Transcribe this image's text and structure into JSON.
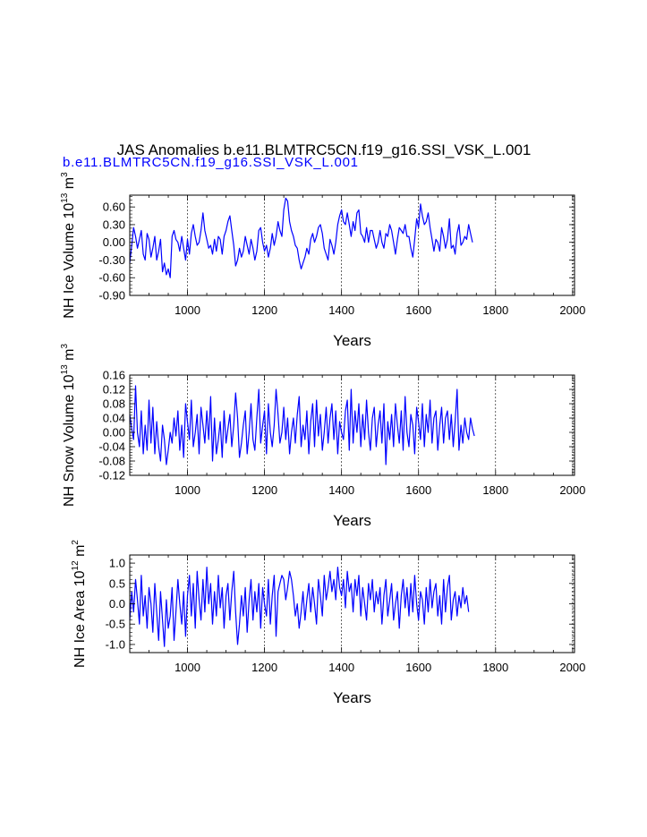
{
  "title": "JAS Anomalies b.e11.BLMTRC5CN.f19_g16.SSI_VSK_L.001",
  "subtitle": "b.e11.BLMTRC5CN.f19_g16.SSI_VSK_L.001",
  "colors": {
    "series": "#0000ff",
    "axis": "#000000",
    "subtitle": "#0000ff"
  },
  "chart_data": [
    {
      "type": "line",
      "title": "",
      "ylabel_parts": [
        "NH Ice Volume 10",
        "13",
        " m",
        "3"
      ],
      "xlabel": "Years",
      "xlim": [
        850,
        2005
      ],
      "ylim": [
        -0.9,
        0.8
      ],
      "xticks": [
        1000,
        1200,
        1400,
        1600,
        1800,
        2000
      ],
      "yticks": [
        -0.9,
        -0.6,
        -0.3,
        0.0,
        0.3,
        0.6
      ],
      "ytick_labels": [
        "-0.90",
        "-0.60",
        "-0.30",
        "0.00",
        "0.30",
        "0.60"
      ],
      "vgrid": [
        1000,
        1200,
        1400,
        1600,
        1800,
        2000
      ],
      "series": [
        {
          "name": "b.e11.BLMTRC5CN.f19_g16.SSI_VSK_L.001",
          "x_start": 850,
          "x_step": 5,
          "values": [
            -0.35,
            -0.05,
            0.25,
            0.1,
            -0.1,
            0.05,
            0.2,
            -0.2,
            -0.3,
            0.15,
            0.05,
            -0.25,
            -0.1,
            0.1,
            -0.3,
            -0.15,
            0.05,
            -0.5,
            -0.35,
            -0.55,
            -0.45,
            -0.6,
            0.1,
            0.2,
            0.05,
            0.0,
            -0.15,
            0.1,
            -0.1,
            -0.3,
            0.05,
            -0.2,
            0.15,
            0.3,
            0.1,
            -0.05,
            0.0,
            0.2,
            0.5,
            0.2,
            0.05,
            -0.1,
            -0.05,
            -0.2,
            0.05,
            -0.15,
            0.1,
            0.05,
            -0.2,
            0.1,
            0.2,
            0.35,
            0.45,
            0.2,
            -0.05,
            -0.4,
            -0.3,
            -0.1,
            -0.25,
            -0.15,
            0.1,
            -0.05,
            -0.2,
            0.05,
            -0.1,
            -0.3,
            -0.15,
            0.2,
            0.25,
            0.0,
            -0.15,
            -0.05,
            -0.25,
            -0.1,
            0.15,
            -0.05,
            0.1,
            0.35,
            0.2,
            0.1,
            0.55,
            0.75,
            0.7,
            0.35,
            0.2,
            0.1,
            -0.05,
            -0.1,
            -0.3,
            -0.45,
            -0.35,
            -0.25,
            -0.1,
            -0.2,
            0.05,
            0.15,
            0.0,
            0.1,
            0.25,
            0.3,
            0.15,
            -0.1,
            -0.2,
            -0.3,
            0.05,
            -0.05,
            -0.2,
            0.0,
            0.3,
            0.45,
            0.55,
            0.35,
            0.3,
            0.5,
            0.3,
            0.1,
            0.35,
            0.2,
            0.5,
            0.55,
            0.15,
            0.1,
            0.0,
            0.25,
            0.0,
            0.2,
            0.2,
            0.05,
            -0.1,
            0.0,
            0.2,
            0.0,
            -0.1,
            0.15,
            0.1,
            0.3,
            0.2,
            0.0,
            -0.2,
            0.05,
            0.25,
            0.2,
            0.15,
            0.3,
            0.1,
            0.1,
            -0.1,
            -0.25,
            0.05,
            0.4,
            0.25,
            0.65,
            0.45,
            0.3,
            0.35,
            0.5,
            0.25,
            0.05,
            -0.15,
            0.05,
            0.0,
            -0.15,
            0.25,
            0.1,
            -0.1,
            0.05,
            0.4,
            -0.1,
            -0.05,
            -0.2,
            0.15,
            0.3,
            -0.05,
            0.0,
            0.1,
            0.05,
            0.3,
            0.15,
            0.0
          ]
        }
      ]
    },
    {
      "type": "line",
      "title": "",
      "ylabel_parts": [
        "NH Snow Volume 10",
        "13",
        " m",
        "3"
      ],
      "xlabel": "Years",
      "xlim": [
        850,
        2005
      ],
      "ylim": [
        -0.12,
        0.16
      ],
      "xticks": [
        1000,
        1200,
        1400,
        1600,
        1800,
        2000
      ],
      "yticks": [
        -0.12,
        -0.08,
        -0.04,
        0.0,
        0.04,
        0.08,
        0.12,
        0.16
      ],
      "ytick_labels": [
        "-0.12",
        "-0.08",
        "-0.04",
        "0.00",
        "0.04",
        "0.08",
        "0.12",
        "0.16"
      ],
      "vgrid": [
        1000,
        1200,
        1400,
        1600,
        1800,
        2000
      ],
      "series": [
        {
          "name": "b.e11.BLMTRC5CN.f19_g16.SSI_VSK_L.001",
          "x_start": 850,
          "x_step": 5,
          "values": [
            0.05,
            0.01,
            -0.02,
            0.13,
            0.0,
            -0.04,
            0.06,
            -0.06,
            0.02,
            -0.05,
            0.09,
            -0.03,
            0.07,
            -0.06,
            0.03,
            -0.04,
            -0.08,
            0.02,
            -0.02,
            -0.09,
            -0.05,
            0.0,
            -0.03,
            0.04,
            -0.01,
            0.06,
            -0.05,
            0.02,
            -0.07,
            0.08,
            0.03,
            -0.02,
            0.09,
            -0.04,
            0.0,
            0.05,
            -0.06,
            0.07,
            0.02,
            -0.03,
            0.06,
            -0.02,
            0.1,
            -0.08,
            0.04,
            -0.06,
            -0.02,
            0.03,
            -0.07,
            0.06,
            -0.03,
            0.01,
            0.05,
            -0.04,
            0.02,
            0.11,
            0.04,
            -0.07,
            -0.03,
            0.02,
            0.06,
            -0.06,
            0.0,
            0.08,
            -0.02,
            -0.05,
            0.04,
            0.12,
            -0.03,
            0.02,
            0.06,
            -0.06,
            0.08,
            0.0,
            -0.04,
            0.02,
            0.12,
            0.05,
            -0.03,
            0.0,
            0.07,
            -0.02,
            0.04,
            -0.06,
            0.0,
            0.04,
            -0.03,
            0.05,
            0.1,
            -0.04,
            0.02,
            -0.02,
            0.06,
            -0.06,
            0.03,
            0.08,
            -0.04,
            0.09,
            -0.01,
            0.05,
            -0.05,
            0.0,
            0.07,
            -0.03,
            0.04,
            0.08,
            -0.02,
            0.06,
            -0.06,
            0.03,
            0.0,
            -0.02,
            0.06,
            0.09,
            -0.05,
            0.12,
            -0.03,
            0.06,
            0.0,
            0.08,
            -0.04,
            0.05,
            -0.02,
            0.09,
            0.0,
            -0.05,
            0.04,
            0.07,
            -0.04,
            0.02,
            0.06,
            -0.03,
            0.08,
            -0.09,
            0.03,
            -0.02,
            0.05,
            -0.04,
            0.08,
            0.02,
            -0.03,
            0.06,
            -0.05,
            0.1,
            0.0,
            -0.04,
            0.05,
            0.02,
            -0.06,
            0.07,
            0.03,
            -0.02,
            0.08,
            -0.04,
            0.05,
            0.0,
            0.09,
            -0.03,
            0.04,
            0.06,
            -0.05,
            0.02,
            0.07,
            -0.03,
            0.04,
            0.06,
            -0.02,
            0.05,
            -0.04,
            0.03,
            0.12,
            -0.05,
            0.02,
            -0.03,
            0.04,
            0.0,
            -0.02,
            0.04,
            0.01,
            -0.01
          ]
        }
      ]
    },
    {
      "type": "line",
      "title": "",
      "ylabel_parts": [
        "NH Ice Area 10",
        "12",
        " m",
        "2"
      ],
      "xlabel": "Years",
      "xlim": [
        850,
        2005
      ],
      "ylim": [
        -1.2,
        1.2
      ],
      "xticks": [
        1000,
        1200,
        1400,
        1600,
        1800,
        2000
      ],
      "yticks": [
        -1.0,
        -0.5,
        0.0,
        0.5,
        1.0
      ],
      "ytick_labels": [
        "-1.0",
        "-0.5",
        "0.0",
        "0.5",
        "1.0"
      ],
      "vgrid": [
        1000,
        1200,
        1400,
        1600,
        1800,
        2000
      ],
      "series": [
        {
          "name": "b.e11.BLMTRC5CN.f19_g16.SSI_VSK_L.001",
          "x_start": 850,
          "x_step": 5,
          "values": [
            -0.4,
            0.3,
            -0.2,
            0.6,
            0.1,
            -0.5,
            0.7,
            -0.3,
            0.2,
            -0.6,
            0.4,
            0.0,
            -0.7,
            0.5,
            -0.2,
            -0.9,
            0.3,
            -0.4,
            -1.05,
            0.1,
            -0.6,
            -0.3,
            0.4,
            -0.9,
            -0.2,
            0.6,
            0.0,
            -0.5,
            0.3,
            -0.8,
            0.2,
            0.7,
            -0.3,
            0.5,
            -0.6,
            0.8,
            0.1,
            -0.4,
            0.6,
            -0.2,
            0.9,
            0.0,
            0.5,
            -0.5,
            0.3,
            -0.3,
            0.7,
            -0.1,
            0.4,
            -0.6,
            0.2,
            0.5,
            -0.4,
            0.3,
            0.8,
            -0.2,
            -1.0,
            -0.5,
            0.2,
            -0.3,
            0.4,
            -0.7,
            0.1,
            0.6,
            -0.4,
            0.3,
            -0.2,
            0.5,
            -0.6,
            0.4,
            0.0,
            -0.3,
            0.6,
            -0.5,
            0.2,
            0.7,
            -0.8,
            0.3,
            0.5,
            0.7,
            0.6,
            0.1,
            0.4,
            0.8,
            0.6,
            0.2,
            -0.3,
            0.0,
            -0.6,
            -0.2,
            0.3,
            -0.4,
            0.1,
            0.5,
            -0.2,
            0.4,
            0.0,
            -0.5,
            0.6,
            0.2,
            -0.3,
            0.7,
            0.1,
            0.4,
            0.8,
            0.3,
            0.6,
            0.1,
            0.9,
            0.4,
            0.2,
            0.6,
            -0.1,
            0.8,
            0.3,
            0.5,
            -0.2,
            0.6,
            0.2,
            0.7,
            -0.3,
            0.4,
            0.0,
            -0.4,
            0.5,
            0.1,
            0.6,
            -0.2,
            0.3,
            0.0,
            0.4,
            -0.5,
            0.2,
            0.6,
            -0.3,
            0.1,
            0.5,
            -0.4,
            0.0,
            0.3,
            -0.6,
            0.2,
            0.6,
            -0.1,
            0.4,
            -0.3,
            0.5,
            -0.2,
            0.7,
            0.0,
            -0.4,
            0.3,
            0.1,
            -0.5,
            0.4,
            -0.2,
            0.6,
            -0.1,
            0.3,
            0.5,
            -0.3,
            0.2,
            -0.5,
            0.6,
            -0.2,
            0.4,
            0.7,
            -0.4,
            0.1,
            0.3,
            -0.3,
            0.2,
            -0.1,
            0.4,
            0.0,
            0.2,
            -0.2
          ]
        }
      ]
    }
  ]
}
